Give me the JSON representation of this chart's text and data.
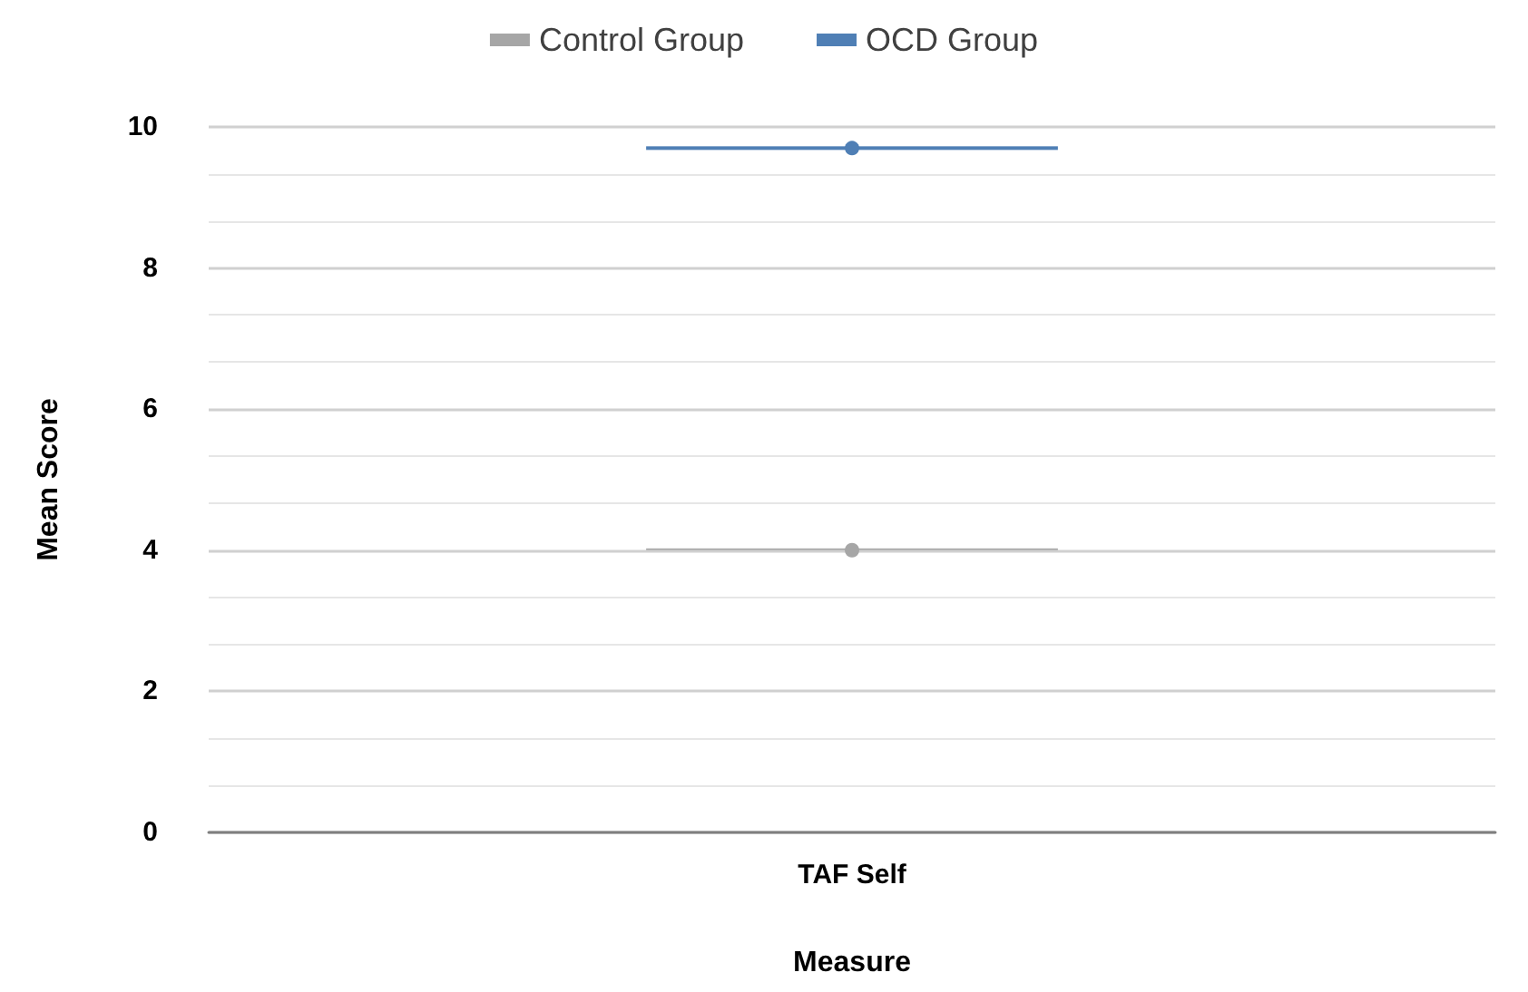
{
  "chart_data": {
    "type": "scatter",
    "xlabel": "Measure",
    "ylabel": "Mean Score",
    "categories": [
      "TAF Self"
    ],
    "series": [
      {
        "name": "Control Group",
        "color": "#a6a6a6",
        "values": [
          4.0
        ]
      },
      {
        "name": "OCD Group",
        "color": "#4f7fb5",
        "values": [
          9.7
        ]
      }
    ],
    "ylim": [
      0,
      10
    ],
    "yticks": [
      0,
      2,
      4,
      6,
      8,
      10
    ],
    "grid": "y",
    "legend": "top",
    "marker": "circle"
  }
}
